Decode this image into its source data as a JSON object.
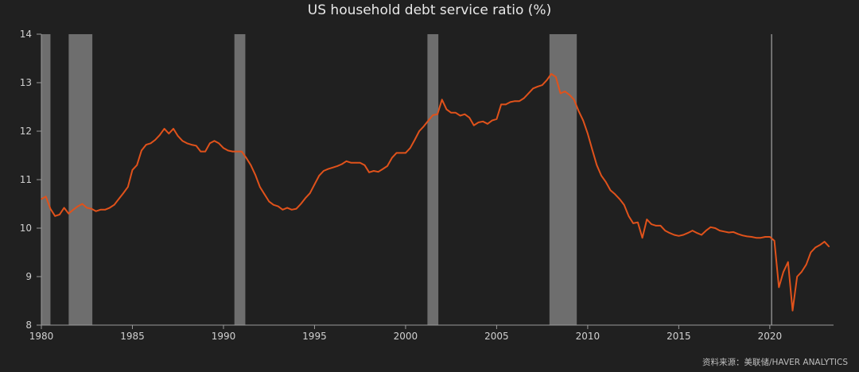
{
  "chart_data": {
    "type": "line",
    "title": "US household debt service ratio (%)",
    "xlabel": "",
    "ylabel": "",
    "xlim": [
      1980,
      2023.5
    ],
    "ylim": [
      8,
      14
    ],
    "y_ticks": [
      "8",
      "9",
      "10",
      "11",
      "12",
      "13",
      "14"
    ],
    "x_ticks": [
      "1980",
      "1985",
      "1990",
      "1995",
      "2000",
      "2005",
      "2010",
      "2015",
      "2020"
    ],
    "grid": false,
    "legend": "none",
    "line_color": "#e0521b",
    "recession_color": "#6e6e6e",
    "marker_color": "#8a8a8a",
    "marker_x": 2020.1,
    "recessions": [
      [
        1980.0,
        1980.5
      ],
      [
        1981.5,
        1982.8
      ],
      [
        1990.6,
        1991.2
      ],
      [
        2001.2,
        2001.8
      ],
      [
        2007.9,
        2009.4
      ]
    ],
    "series": [
      {
        "name": "",
        "x": [
          1980.0,
          1980.25,
          1980.5,
          1980.75,
          1981.0,
          1981.25,
          1981.5,
          1981.75,
          1982.0,
          1982.25,
          1982.5,
          1982.75,
          1983.0,
          1983.25,
          1983.5,
          1983.75,
          1984.0,
          1984.25,
          1984.5,
          1984.75,
          1985.0,
          1985.25,
          1985.5,
          1985.75,
          1986.0,
          1986.25,
          1986.5,
          1986.75,
          1987.0,
          1987.25,
          1987.5,
          1987.75,
          1988.0,
          1988.25,
          1988.5,
          1988.75,
          1989.0,
          1989.25,
          1989.5,
          1989.75,
          1990.0,
          1990.25,
          1990.5,
          1990.75,
          1991.0,
          1991.25,
          1991.5,
          1991.75,
          1992.0,
          1992.25,
          1992.5,
          1992.75,
          1993.0,
          1993.25,
          1993.5,
          1993.75,
          1994.0,
          1994.25,
          1994.5,
          1994.75,
          1995.0,
          1995.25,
          1995.5,
          1995.75,
          1996.0,
          1996.25,
          1996.5,
          1996.75,
          1997.0,
          1997.25,
          1997.5,
          1997.75,
          1998.0,
          1998.25,
          1998.5,
          1998.75,
          1999.0,
          1999.25,
          1999.5,
          1999.75,
          2000.0,
          2000.25,
          2000.5,
          2000.75,
          2001.0,
          2001.25,
          2001.5,
          2001.75,
          2002.0,
          2002.25,
          2002.5,
          2002.75,
          2003.0,
          2003.25,
          2003.5,
          2003.75,
          2004.0,
          2004.25,
          2004.5,
          2004.75,
          2005.0,
          2005.25,
          2005.5,
          2005.75,
          2006.0,
          2006.25,
          2006.5,
          2006.75,
          2007.0,
          2007.25,
          2007.5,
          2007.75,
          2008.0,
          2008.25,
          2008.5,
          2008.75,
          2009.0,
          2009.25,
          2009.5,
          2009.75,
          2010.0,
          2010.25,
          2010.5,
          2010.75,
          2011.0,
          2011.25,
          2011.5,
          2011.75,
          2012.0,
          2012.25,
          2012.5,
          2012.75,
          2013.0,
          2013.25,
          2013.5,
          2013.75,
          2014.0,
          2014.25,
          2014.5,
          2014.75,
          2015.0,
          2015.25,
          2015.5,
          2015.75,
          2016.0,
          2016.25,
          2016.5,
          2016.75,
          2017.0,
          2017.25,
          2017.5,
          2017.75,
          2018.0,
          2018.25,
          2018.5,
          2018.75,
          2019.0,
          2019.25,
          2019.5,
          2019.75,
          2020.0,
          2020.25,
          2020.5,
          2020.75,
          2021.0,
          2021.25,
          2021.5,
          2021.75,
          2022.0,
          2022.25,
          2022.5,
          2022.75,
          2023.0,
          2023.25
        ],
        "values": [
          10.6,
          10.65,
          10.4,
          10.25,
          10.28,
          10.42,
          10.3,
          10.38,
          10.45,
          10.5,
          10.42,
          10.4,
          10.35,
          10.38,
          10.38,
          10.42,
          10.48,
          10.6,
          10.72,
          10.85,
          11.2,
          11.3,
          11.6,
          11.72,
          11.75,
          11.82,
          11.92,
          12.05,
          11.95,
          12.05,
          11.9,
          11.8,
          11.75,
          11.72,
          11.7,
          11.58,
          11.58,
          11.75,
          11.8,
          11.75,
          11.65,
          11.6,
          11.58,
          11.58,
          11.58,
          11.45,
          11.3,
          11.1,
          10.85,
          10.7,
          10.55,
          10.48,
          10.45,
          10.38,
          10.42,
          10.38,
          10.4,
          10.5,
          10.62,
          10.72,
          10.9,
          11.08,
          11.18,
          11.22,
          11.25,
          11.28,
          11.32,
          11.38,
          11.35,
          11.35,
          11.35,
          11.3,
          11.15,
          11.18,
          11.16,
          11.22,
          11.28,
          11.45,
          11.55,
          11.55,
          11.55,
          11.65,
          11.82,
          12.0,
          12.1,
          12.22,
          12.33,
          12.35,
          12.65,
          12.45,
          12.38,
          12.38,
          12.32,
          12.35,
          12.28,
          12.12,
          12.18,
          12.2,
          12.15,
          12.22,
          12.25,
          12.55,
          12.55,
          12.6,
          12.62,
          12.62,
          12.68,
          12.78,
          12.88,
          12.92,
          12.95,
          13.05,
          13.18,
          13.12,
          12.78,
          12.82,
          12.75,
          12.65,
          12.42,
          12.22,
          11.95,
          11.62,
          11.3,
          11.08,
          10.95,
          10.78,
          10.7,
          10.6,
          10.48,
          10.25,
          10.1,
          10.12,
          9.8,
          10.18,
          10.08,
          10.05,
          10.05,
          9.95,
          9.9,
          9.86,
          9.84,
          9.86,
          9.9,
          9.95,
          9.9,
          9.86,
          9.95,
          10.02,
          10.0,
          9.95,
          9.93,
          9.91,
          9.92,
          9.88,
          9.85,
          9.83,
          9.82,
          9.8,
          9.8,
          9.82,
          9.82,
          9.74,
          8.78,
          9.1,
          9.3,
          8.3,
          9.0,
          9.1,
          9.25,
          9.5,
          9.6,
          9.65,
          9.72,
          9.62
        ]
      }
    ],
    "source": "资料来源：美联储/HAVER ANALYTICS"
  }
}
